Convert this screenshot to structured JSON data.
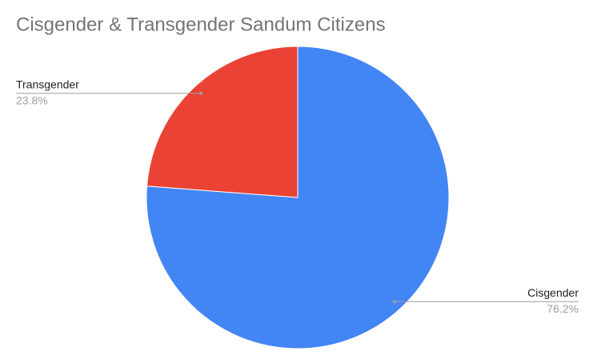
{
  "chart_data": {
    "type": "pie",
    "title": "Cisgender & Transgender Sandum Citizens",
    "categories": [
      "Cisgender",
      "Transgender"
    ],
    "values": [
      76.2,
      23.8
    ],
    "value_labels": [
      "76.2%",
      "23.8%"
    ],
    "colors": [
      "#4285f4",
      "#ea4335"
    ]
  }
}
